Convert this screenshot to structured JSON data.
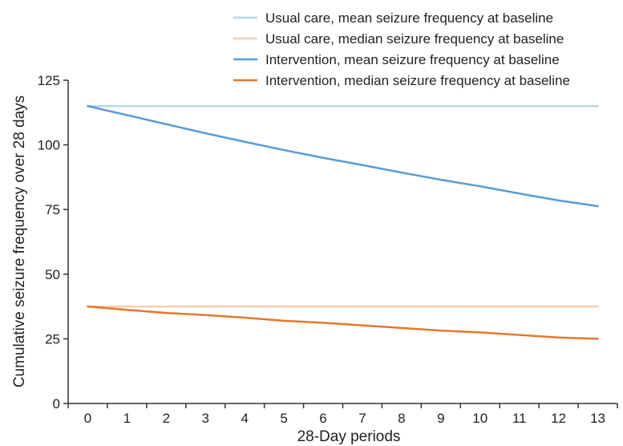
{
  "chart_data": {
    "type": "line",
    "title": "",
    "xlabel": "28-Day periods",
    "ylabel": "Cumulative seizure frequency over 28 days",
    "x": [
      0,
      1,
      2,
      3,
      4,
      5,
      6,
      7,
      8,
      9,
      10,
      11,
      12,
      13
    ],
    "xlim": [
      -0.5,
      13.5
    ],
    "ylim": [
      0,
      125
    ],
    "yticks": [
      0,
      25,
      50,
      75,
      100,
      125
    ],
    "grid": false,
    "legend_position": "top-right",
    "series": [
      {
        "name": "Usual care, mean seizure frequency at baseline",
        "color": "#b8d8ee",
        "values": [
          115,
          115,
          115,
          115,
          115,
          115,
          115,
          115,
          115,
          115,
          115,
          115,
          115,
          115
        ]
      },
      {
        "name": "Usual care, median seizure frequency at baseline",
        "color": "#f7cfae",
        "values": [
          37.5,
          37.5,
          37.5,
          37.5,
          37.5,
          37.5,
          37.5,
          37.5,
          37.5,
          37.5,
          37.5,
          37.5,
          37.5,
          37.5
        ]
      },
      {
        "name": "Intervention, mean seizure frequency at baseline",
        "color": "#5b9bd5",
        "values": [
          115,
          111.5,
          108,
          104.5,
          101.2,
          98,
          95,
          92.2,
          89.3,
          86.5,
          84,
          81.2,
          78.5,
          76.3
        ]
      },
      {
        "name": "Intervention, median seizure frequency at baseline",
        "color": "#e8762c",
        "values": [
          37.5,
          36.2,
          35,
          34.2,
          33.2,
          32,
          31.2,
          30.2,
          29.2,
          28.2,
          27.5,
          26.5,
          25.5,
          25
        ]
      }
    ]
  }
}
